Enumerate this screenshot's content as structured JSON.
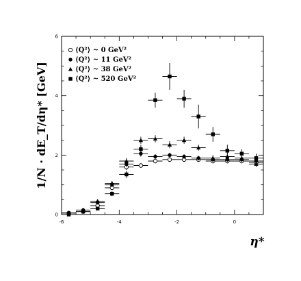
{
  "chart_data": {
    "type": "scatter",
    "xlabel": "η*",
    "ylabel": "1/N · dE_T/dη* [GeV]",
    "xlim": [
      -6,
      1
    ],
    "ylim": [
      0,
      6
    ],
    "xticks": [
      -6,
      -4,
      -2,
      0
    ],
    "yticks": [
      0,
      2,
      4,
      6
    ],
    "legend_position": "top-left",
    "series": [
      {
        "name": "⟨Q²⟩ ~ 0 GeV²",
        "marker": "open-circle",
        "points": [
          {
            "x": -5.75,
            "y": 0.05,
            "xerr": 0.25,
            "yerr": 0.03
          },
          {
            "x": -5.25,
            "y": 0.1,
            "xerr": 0.25,
            "yerr": 0.03
          },
          {
            "x": -4.75,
            "y": 0.3,
            "xerr": 0.25,
            "yerr": 0.05
          },
          {
            "x": -4.25,
            "y": 0.9,
            "xerr": 0.25,
            "yerr": 0.08
          },
          {
            "x": -3.75,
            "y": 1.6,
            "xerr": 0.25,
            "yerr": 0.1
          },
          {
            "x": -3.25,
            "y": 1.65,
            "xerr": 0.25,
            "yerr": 0.08
          },
          {
            "x": -2.75,
            "y": 1.8,
            "xerr": 0.25,
            "yerr": 0.08
          },
          {
            "x": -2.25,
            "y": 1.85,
            "xerr": 0.25,
            "yerr": 0.08
          },
          {
            "x": -1.75,
            "y": 1.85,
            "xerr": 0.25,
            "yerr": 0.08
          },
          {
            "x": -1.25,
            "y": 1.85,
            "xerr": 0.25,
            "yerr": 0.08
          },
          {
            "x": -0.75,
            "y": 1.8,
            "xerr": 0.25,
            "yerr": 0.08
          },
          {
            "x": -0.25,
            "y": 1.8,
            "xerr": 0.25,
            "yerr": 0.08
          },
          {
            "x": 0.25,
            "y": 1.8,
            "xerr": 0.25,
            "yerr": 0.08
          },
          {
            "x": 0.75,
            "y": 1.75,
            "xerr": 0.25,
            "yerr": 0.08
          }
        ]
      },
      {
        "name": "⟨Q²⟩ ~ 11 GeV²",
        "marker": "filled-circle",
        "points": [
          {
            "x": -5.75,
            "y": 0.05,
            "xerr": 0.25,
            "yerr": 0.03
          },
          {
            "x": -5.25,
            "y": 0.15,
            "xerr": 0.25,
            "yerr": 0.03
          },
          {
            "x": -4.75,
            "y": 0.4,
            "xerr": 0.25,
            "yerr": 0.05
          },
          {
            "x": -4.25,
            "y": 1.0,
            "xerr": 0.25,
            "yerr": 0.08
          },
          {
            "x": -3.75,
            "y": 1.7,
            "xerr": 0.25,
            "yerr": 0.1
          },
          {
            "x": -3.25,
            "y": 2.05,
            "xerr": 0.25,
            "yerr": 0.1
          },
          {
            "x": -2.75,
            "y": 1.95,
            "xerr": 0.25,
            "yerr": 0.08
          },
          {
            "x": -2.25,
            "y": 2.0,
            "xerr": 0.25,
            "yerr": 0.08
          },
          {
            "x": -1.75,
            "y": 1.95,
            "xerr": 0.25,
            "yerr": 0.08
          },
          {
            "x": -1.25,
            "y": 1.9,
            "xerr": 0.25,
            "yerr": 0.08
          },
          {
            "x": -0.75,
            "y": 1.85,
            "xerr": 0.25,
            "yerr": 0.08
          },
          {
            "x": -0.25,
            "y": 1.85,
            "xerr": 0.25,
            "yerr": 0.08
          },
          {
            "x": 0.25,
            "y": 1.85,
            "xerr": 0.25,
            "yerr": 0.08
          },
          {
            "x": 0.75,
            "y": 1.8,
            "xerr": 0.25,
            "yerr": 0.08
          }
        ]
      },
      {
        "name": "⟨Q²⟩ ~ 38 GeV²",
        "marker": "filled-triangle",
        "points": [
          {
            "x": -5.75,
            "y": 0.05,
            "xerr": 0.25,
            "yerr": 0.03
          },
          {
            "x": -5.25,
            "y": 0.15,
            "xerr": 0.25,
            "yerr": 0.03
          },
          {
            "x": -4.75,
            "y": 0.45,
            "xerr": 0.25,
            "yerr": 0.05
          },
          {
            "x": -4.25,
            "y": 1.05,
            "xerr": 0.25,
            "yerr": 0.08
          },
          {
            "x": -3.75,
            "y": 1.8,
            "xerr": 0.25,
            "yerr": 0.1
          },
          {
            "x": -3.25,
            "y": 2.5,
            "xerr": 0.25,
            "yerr": 0.12
          },
          {
            "x": -2.75,
            "y": 2.55,
            "xerr": 0.25,
            "yerr": 0.12
          },
          {
            "x": -2.25,
            "y": 2.35,
            "xerr": 0.25,
            "yerr": 0.12
          },
          {
            "x": -1.75,
            "y": 2.5,
            "xerr": 0.25,
            "yerr": 0.12
          },
          {
            "x": -1.25,
            "y": 2.25,
            "xerr": 0.25,
            "yerr": 0.1
          },
          {
            "x": -0.75,
            "y": 1.9,
            "xerr": 0.25,
            "yerr": 0.1
          },
          {
            "x": -0.25,
            "y": 1.95,
            "xerr": 0.25,
            "yerr": 0.1
          },
          {
            "x": 0.25,
            "y": 1.9,
            "xerr": 0.25,
            "yerr": 0.1
          },
          {
            "x": 0.75,
            "y": 1.7,
            "xerr": 0.25,
            "yerr": 0.1
          }
        ]
      },
      {
        "name": "⟨Q²⟩ ~ 520 GeV²",
        "marker": "filled-square",
        "points": [
          {
            "x": -5.75,
            "y": 0.0,
            "xerr": 0.25,
            "yerr": 0.03
          },
          {
            "x": -5.25,
            "y": 0.1,
            "xerr": 0.25,
            "yerr": 0.03
          },
          {
            "x": -4.75,
            "y": 0.2,
            "xerr": 0.25,
            "yerr": 0.05
          },
          {
            "x": -4.25,
            "y": 0.7,
            "xerr": 0.25,
            "yerr": 0.08
          },
          {
            "x": -3.75,
            "y": 1.35,
            "xerr": 0.25,
            "yerr": 0.12
          },
          {
            "x": -3.25,
            "y": 2.2,
            "xerr": 0.25,
            "yerr": 0.15
          },
          {
            "x": -2.75,
            "y": 3.85,
            "xerr": 0.25,
            "yerr": 0.25
          },
          {
            "x": -2.25,
            "y": 4.65,
            "xerr": 0.25,
            "yerr": 0.45
          },
          {
            "x": -1.75,
            "y": 3.9,
            "xerr": 0.25,
            "yerr": 0.3
          },
          {
            "x": -1.25,
            "y": 3.3,
            "xerr": 0.25,
            "yerr": 0.4
          },
          {
            "x": -0.75,
            "y": 2.7,
            "xerr": 0.25,
            "yerr": 0.25
          },
          {
            "x": -0.25,
            "y": 2.15,
            "xerr": 0.25,
            "yerr": 0.2
          },
          {
            "x": 0.25,
            "y": 2.05,
            "xerr": 0.25,
            "yerr": 0.15
          },
          {
            "x": 0.75,
            "y": 1.9,
            "xerr": 0.25,
            "yerr": 0.15
          }
        ]
      }
    ]
  }
}
